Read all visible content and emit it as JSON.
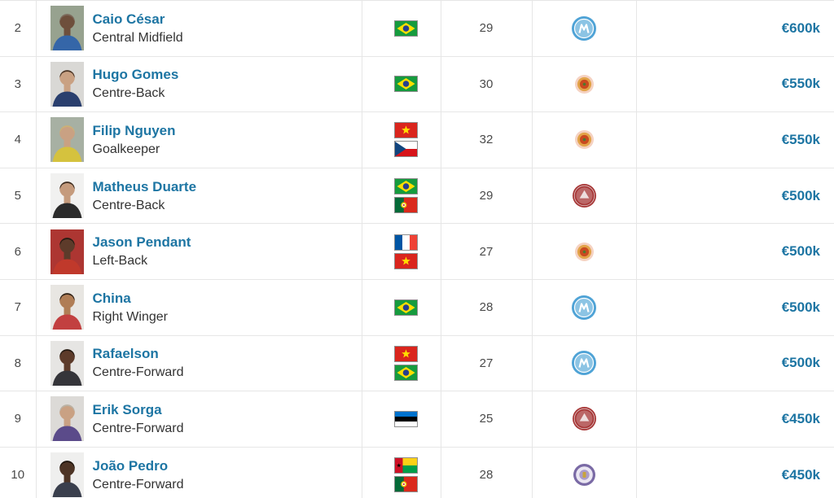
{
  "ui": {
    "accent_color": "#1d75a3",
    "text_color": "#333333",
    "muted_text_color": "#4a4a4a",
    "grid_color": "#e6e6e6",
    "background_color": "#ffffff"
  },
  "clubs": {
    "blue-round": {
      "icon": "club-badge-blue-round",
      "primary": "#4fa3d6",
      "secondary": "#8cc4e4",
      "size": 30
    },
    "orange-ring": {
      "icon": "club-badge-orange-ring",
      "outer": "#f5d2c2",
      "ring": "#e2a348",
      "center": "#c94a20",
      "size": 23
    },
    "red-crest": {
      "icon": "club-badge-red-crest",
      "primary": "#a63434",
      "secondary": "#bb6767",
      "size": 29
    },
    "purple-round": {
      "icon": "club-badge-purple-round",
      "primary": "#7a6aa5",
      "secondary": "#eae6f2",
      "center": "#c8a43c",
      "size": 27
    }
  },
  "table": {
    "rows": [
      {
        "rank": "2",
        "name": "Caio César",
        "position": "Central Midfield",
        "nationalities": [
          "brazil"
        ],
        "age": "29",
        "club": "blue-round",
        "value": "€600k",
        "photo": {
          "bg": "#97a28f",
          "skin": "#6e4f3c",
          "hair": "#7d6a5c",
          "jersey": "#3566a8"
        }
      },
      {
        "rank": "3",
        "name": "Hugo Gomes",
        "position": "Centre-Back",
        "nationalities": [
          "brazil"
        ],
        "age": "30",
        "club": "orange-ring",
        "value": "€550k",
        "photo": {
          "bg": "#d9d8d5",
          "skin": "#c9a183",
          "hair": "#4a3526",
          "jersey": "#2a3f6e"
        }
      },
      {
        "rank": "4",
        "name": "Filip Nguyen",
        "position": "Goalkeeper",
        "nationalities": [
          "vietnam",
          "czech-republic"
        ],
        "age": "32",
        "club": "orange-ring",
        "value": "€550k",
        "photo": {
          "bg": "#a7b0a3",
          "skin": "#c9a183",
          "hair": "#cbb176",
          "jersey": "#d5c23e"
        }
      },
      {
        "rank": "5",
        "name": "Matheus Duarte",
        "position": "Centre-Back",
        "nationalities": [
          "brazil",
          "portugal"
        ],
        "age": "29",
        "club": "red-crest",
        "value": "€500k",
        "photo": {
          "bg": "#f1f1f0",
          "skin": "#c59b7d",
          "hair": "#3a2a1e",
          "jersey": "#2b2b2b"
        }
      },
      {
        "rank": "6",
        "name": "Jason Pendant",
        "position": "Left-Back",
        "nationalities": [
          "france",
          "vietnam"
        ],
        "age": "27",
        "club": "orange-ring",
        "value": "€500k",
        "photo": {
          "bg": "#ad3632",
          "skin": "#5d3b2a",
          "hair": "#241a12",
          "jersey": "#c0392b"
        }
      },
      {
        "rank": "7",
        "name": "China",
        "position": "Right Winger",
        "nationalities": [
          "brazil"
        ],
        "age": "28",
        "club": "blue-round",
        "value": "€500k",
        "photo": {
          "bg": "#e8e6e2",
          "skin": "#b07d55",
          "hair": "#2e2218",
          "jersey": "#c24040"
        }
      },
      {
        "rank": "8",
        "name": "Rafaelson",
        "position": "Centre-Forward",
        "nationalities": [
          "vietnam",
          "brazil"
        ],
        "age": "27",
        "club": "blue-round",
        "value": "€500k",
        "photo": {
          "bg": "#e6e5e3",
          "skin": "#5d3b2a",
          "hair": "#241a12",
          "jersey": "#35353a"
        }
      },
      {
        "rank": "9",
        "name": "Erik Sorga",
        "position": "Centre-Forward",
        "nationalities": [
          "estonia"
        ],
        "age": "25",
        "club": "red-crest",
        "value": "€450k",
        "photo": {
          "bg": "#dcdad7",
          "skin": "#c9a183",
          "hair": "#b9b3a6",
          "jersey": "#5b4b8a"
        }
      },
      {
        "rank": "10",
        "name": "João Pedro",
        "position": "Centre-Forward",
        "nationalities": [
          "guinea-bissau",
          "portugal"
        ],
        "age": "28",
        "club": "purple-round",
        "value": "€450k",
        "photo": {
          "bg": "#efefee",
          "skin": "#4d3425",
          "hair": "#1d140d",
          "jersey": "#3a3f4d"
        }
      }
    ]
  }
}
